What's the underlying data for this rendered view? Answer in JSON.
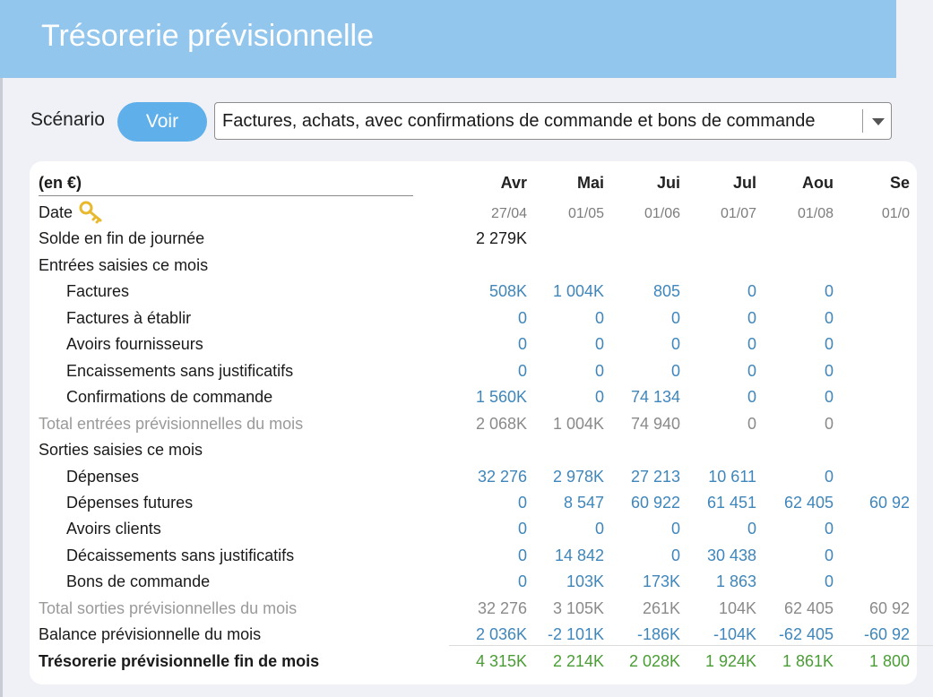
{
  "header": {
    "title": "Trésorerie prévisionnelle"
  },
  "scenario": {
    "label": "Scénario",
    "button_label": "Voir",
    "selected": "Factures, achats, avec confirmations de commande et bons de commande"
  },
  "table": {
    "unit_label": "(en €)",
    "months": [
      "Avr",
      "Mai",
      "Jui",
      "Jul",
      "Aou",
      "Se"
    ],
    "rows": [
      {
        "label": "Date",
        "values": [
          "27/04",
          "01/05",
          "01/06",
          "01/07",
          "01/08",
          "01/0"
        ]
      },
      {
        "label": "Solde en fin de journée",
        "values": [
          "2 279K",
          "",
          "",
          "",
          "",
          ""
        ]
      },
      {
        "label": "Entrées saisies ce mois",
        "values": [
          "",
          "",
          "",
          "",
          "",
          ""
        ]
      },
      {
        "label": "Factures",
        "values": [
          "508K",
          "1 004K",
          "805",
          "0",
          "0",
          ""
        ]
      },
      {
        "label": "Factures à établir",
        "values": [
          "0",
          "0",
          "0",
          "0",
          "0",
          ""
        ]
      },
      {
        "label": "Avoirs fournisseurs",
        "values": [
          "0",
          "0",
          "0",
          "0",
          "0",
          ""
        ]
      },
      {
        "label": "Encaissements sans justificatifs",
        "values": [
          "0",
          "0",
          "0",
          "0",
          "0",
          ""
        ]
      },
      {
        "label": "Confirmations de commande",
        "values": [
          "1 560K",
          "0",
          "74 134",
          "0",
          "0",
          ""
        ]
      },
      {
        "label": "Total entrées prévisionnelles du mois",
        "values": [
          "2 068K",
          "1 004K",
          "74 940",
          "0",
          "0",
          ""
        ]
      },
      {
        "label": "Sorties saisies ce mois",
        "values": [
          "",
          "",
          "",
          "",
          "",
          ""
        ]
      },
      {
        "label": "Dépenses",
        "values": [
          "32 276",
          "2 978K",
          "27 213",
          "10 611",
          "0",
          ""
        ]
      },
      {
        "label": "Dépenses futures",
        "values": [
          "0",
          "8 547",
          "60 922",
          "61 451",
          "62 405",
          "60 92"
        ]
      },
      {
        "label": "Avoirs clients",
        "values": [
          "0",
          "0",
          "0",
          "0",
          "0",
          ""
        ]
      },
      {
        "label": "Décaissements sans justificatifs",
        "values": [
          "0",
          "14 842",
          "0",
          "30 438",
          "0",
          ""
        ]
      },
      {
        "label": "Bons de commande",
        "values": [
          "0",
          "103K",
          "173K",
          "1 863",
          "0",
          ""
        ]
      },
      {
        "label": "Total sorties prévisionnelles du mois",
        "values": [
          "32 276",
          "3 105K",
          "261K",
          "104K",
          "62 405",
          "60 92"
        ]
      },
      {
        "label": "Balance prévisionnelle du mois",
        "values": [
          "2 036K",
          "-2 101K",
          "-186K",
          "-104K",
          "-62 405",
          "-60 92"
        ]
      },
      {
        "label": "Trésorerie prévisionnelle fin de mois",
        "values": [
          "4 315K",
          "2 214K",
          "2 028K",
          "1 924K",
          "1 861K",
          "1 800"
        ]
      }
    ]
  },
  "colors": {
    "header_bg": "#93c6ec",
    "button_bg": "#5fb0ea",
    "value_blue": "#3f86bb",
    "value_grey": "#8a8a8a",
    "value_green": "#4a9d35"
  },
  "icons": {
    "date": "key-icon"
  }
}
